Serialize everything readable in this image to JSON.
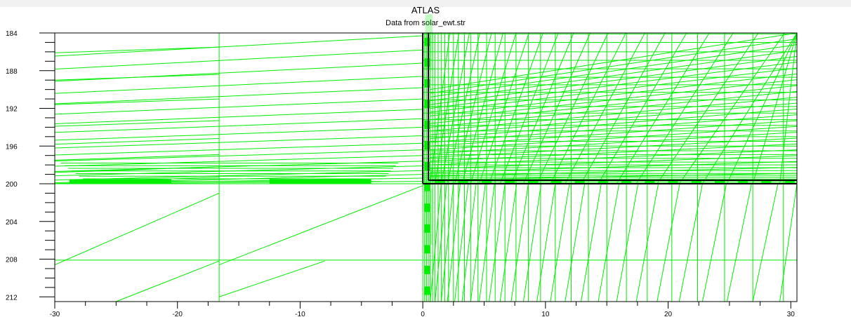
{
  "chart_data": {
    "type": "mesh",
    "title": "ATLAS",
    "subtitle": "Data from solar_ewt.str",
    "xlim": [
      -30,
      30.5
    ],
    "ylim": [
      184,
      212.5
    ],
    "y_inverted": true,
    "x_ticks": [
      -30,
      -20,
      -10,
      0,
      10,
      20,
      30
    ],
    "y_ticks": [
      184,
      188,
      192,
      196,
      200,
      204,
      208,
      212
    ],
    "mesh_color": "#00ee00",
    "fill_color": "#00ee00",
    "interface_color": "#000000",
    "interface": {
      "x0": 0,
      "y_top": 184,
      "y_bottom": 200
    },
    "mesh_vertical_lines": [
      -16.6,
      0.0,
      0.15,
      0.3,
      0.45,
      0.6,
      0.8,
      1.0,
      1.25,
      1.5,
      1.8,
      2.1,
      2.5,
      2.9,
      3.4,
      3.9,
      4.5,
      5.2,
      5.9,
      6.7,
      7.6,
      8.6,
      9.6,
      10.8,
      12.1,
      13.5,
      15.0,
      16.6,
      18.3,
      20.3,
      22.4,
      24.6,
      26.9,
      29.4
    ],
    "mesh_horizontal_lines": [
      184.1,
      185.0,
      186.0,
      186.9,
      187.8,
      188.7,
      189.5,
      190.3,
      191.1,
      191.8,
      192.5,
      193.2,
      193.8,
      194.4,
      195.0,
      195.5,
      196.0,
      196.5,
      196.9,
      197.3,
      197.7,
      198.0,
      198.3,
      198.6,
      198.9,
      199.1,
      199.3,
      199.5,
      199.7,
      199.85,
      200.0,
      208.1
    ],
    "left_sweep_rows": [
      184.3,
      185.8,
      187.2,
      188.6,
      189.8,
      191.0,
      192.1,
      193.1,
      194.0,
      194.9,
      195.7,
      196.4,
      197.0,
      197.6,
      198.1,
      198.6,
      199.0,
      199.4,
      199.75
    ],
    "right_fan_columns": [
      0.6,
      1.0,
      1.5,
      2.0,
      2.6,
      3.2,
      3.9,
      4.6,
      5.4,
      6.3,
      7.2,
      8.2,
      9.3,
      10.4,
      11.6,
      12.9,
      14.3,
      15.8,
      17.4,
      19.1,
      20.9,
      22.8,
      24.8,
      26.9,
      29.1
    ],
    "lower_diagonals": [
      [
        -30,
        208.6,
        -16.6,
        201.0
      ],
      [
        -16.6,
        208.6,
        0,
        200.2
      ],
      [
        -25,
        212.5,
        -16.6,
        208.2
      ],
      [
        -16.6,
        212.0,
        -8,
        208.2
      ]
    ],
    "dense_bars": [
      {
        "x0": -28.8,
        "x1": -20.5,
        "y": 199.75
      },
      {
        "x0": -12.5,
        "x1": -4.2,
        "y": 199.75
      },
      {
        "x0": 0.2,
        "x1": 0.8,
        "y": 185.0
      },
      {
        "x0": 0.2,
        "x1": 0.8,
        "y": 203.5
      }
    ]
  }
}
